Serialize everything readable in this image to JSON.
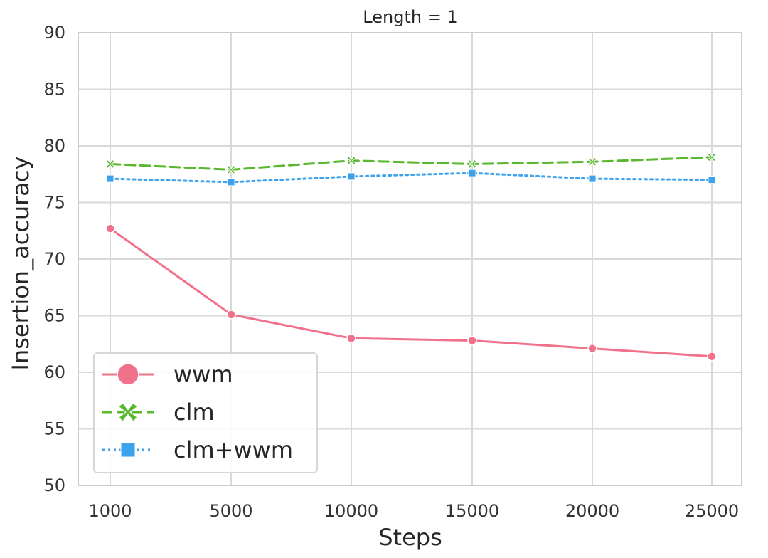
{
  "chart_data": {
    "type": "line",
    "title": "Length = 1",
    "xlabel": "Steps",
    "ylabel": "Insertion_accuracy",
    "categories": [
      "1000",
      "5000",
      "10000",
      "15000",
      "20000",
      "25000"
    ],
    "ylim": [
      50,
      90
    ],
    "yticks": [
      50,
      55,
      60,
      65,
      70,
      75,
      80,
      85,
      90
    ],
    "grid": true,
    "legend_position": "bottom-left",
    "series": [
      {
        "name": "wwm",
        "values": [
          72.7,
          65.1,
          63.0,
          62.8,
          62.1,
          61.4
        ],
        "color": "#f2718a",
        "line_style": "solid",
        "marker": "circle"
      },
      {
        "name": "clm",
        "values": [
          78.4,
          77.9,
          78.7,
          78.4,
          78.6,
          79.0
        ],
        "color": "#5ab82e",
        "line_style": "dashed",
        "marker": "x"
      },
      {
        "name": "clm+wwm",
        "values": [
          77.1,
          76.8,
          77.3,
          77.6,
          77.1,
          77.0
        ],
        "color": "#3ca2ee",
        "line_style": "dotted",
        "marker": "square"
      }
    ]
  }
}
